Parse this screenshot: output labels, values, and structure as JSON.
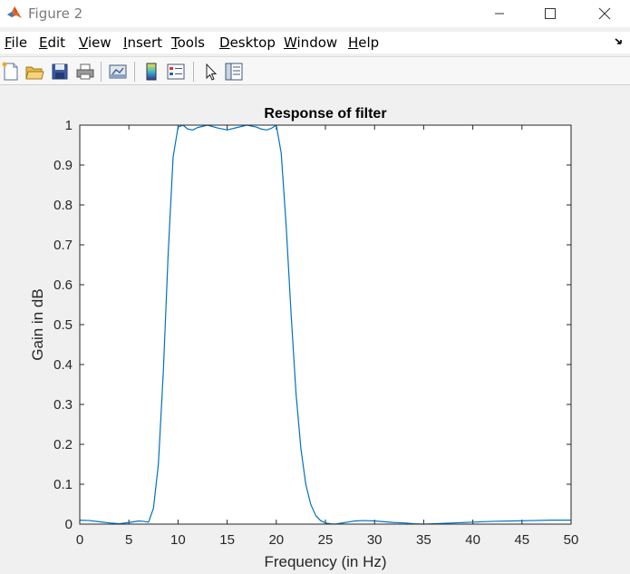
{
  "window": {
    "title": "Figure 2"
  },
  "menu": {
    "items": [
      {
        "label": "File",
        "ul": "F",
        "rest": "ile"
      },
      {
        "label": "Edit",
        "ul": "E",
        "rest": "dit"
      },
      {
        "label": "View",
        "ul": "V",
        "rest": "iew"
      },
      {
        "label": "Insert",
        "ul": "I",
        "rest": "nsert"
      },
      {
        "label": "Tools",
        "ul": "T",
        "rest": "ools"
      },
      {
        "label": "Desktop",
        "ul": "D",
        "rest": "esktop"
      },
      {
        "label": "Window",
        "ul": "W",
        "rest": "indow"
      },
      {
        "label": "Help",
        "ul": "H",
        "rest": "elp"
      }
    ]
  },
  "toolbar": {
    "icons": [
      "new-figure-icon",
      "open-file-icon",
      "save-icon",
      "print-icon",
      "link-plot-icon",
      "colorbar-icon",
      "legend-icon",
      "edit-plot-pointer-icon",
      "property-inspector-icon"
    ]
  },
  "colors": {
    "line": "#0072bd",
    "axes_bg": "#ffffff",
    "figure_bg": "#f0f0f0"
  },
  "chart_data": {
    "type": "line",
    "title": "Response of filter",
    "xlabel": "Frequency (in Hz)",
    "ylabel": "Gain in dB",
    "xlim": [
      0,
      50
    ],
    "ylim": [
      0,
      1
    ],
    "xticks": [
      "0",
      "5",
      "10",
      "15",
      "20",
      "25",
      "30",
      "35",
      "40",
      "45",
      "50"
    ],
    "yticks": [
      "0",
      "0.1",
      "0.2",
      "0.3",
      "0.4",
      "0.5",
      "0.6",
      "0.7",
      "0.8",
      "0.9",
      "1"
    ],
    "grid": false,
    "series": [
      {
        "x": [
          0,
          1,
          2,
          3,
          4,
          5,
          6,
          6.5,
          7,
          7.5,
          8,
          8.5,
          9,
          9.5,
          10,
          10.5,
          11,
          11.5,
          12,
          13,
          14,
          15,
          16,
          17,
          18,
          18.5,
          19,
          19.5,
          20,
          20.5,
          21,
          21.5,
          22,
          22.5,
          23,
          23.5,
          24,
          24.5,
          25,
          25.5,
          26,
          27,
          28,
          29,
          30,
          31,
          32,
          33,
          34,
          35,
          36,
          38,
          40,
          42,
          44,
          46,
          48,
          50
        ],
        "y": [
          0.01,
          0.009,
          0.006,
          0.003,
          0.001,
          0.004,
          0.008,
          0.007,
          0.005,
          0.04,
          0.15,
          0.38,
          0.68,
          0.92,
          0.995,
          1.0,
          0.99,
          0.988,
          0.994,
          1.0,
          0.993,
          0.988,
          0.994,
          1.0,
          0.995,
          0.99,
          0.988,
          0.992,
          1.0,
          0.93,
          0.75,
          0.53,
          0.33,
          0.19,
          0.1,
          0.05,
          0.022,
          0.009,
          0.003,
          0.001,
          0.0,
          0.004,
          0.008,
          0.009,
          0.008,
          0.006,
          0.004,
          0.003,
          0.001,
          0.0,
          0.001,
          0.003,
          0.005,
          0.007,
          0.008,
          0.009,
          0.01,
          0.01
        ]
      }
    ]
  }
}
